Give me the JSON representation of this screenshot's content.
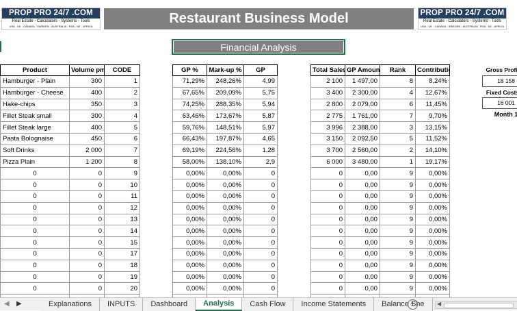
{
  "logo": {
    "name": "PROP PRO 24/7 .COM",
    "tagline": "Real Estate - Calculators - Systems - Tools",
    "countries": "USA - UK - CANADA - SWEDEN - AUSTRALIA - RSA - NZ - AFRICA"
  },
  "title": "Restaurant Business Model",
  "section_button": "Financial Analysis",
  "table1": {
    "headers": [
      "Product",
      "Volume pm",
      "CODE"
    ],
    "rows": [
      [
        "Hamburger - Plain",
        "300",
        "1"
      ],
      [
        "Hamburger - Cheese",
        "400",
        "2"
      ],
      [
        "Hake-chips",
        "350",
        "3"
      ],
      [
        "Fillet Steak small",
        "300",
        "4"
      ],
      [
        "Fillet Steak large",
        "400",
        "5"
      ],
      [
        "Pasta Bolognaise",
        "450",
        "6"
      ],
      [
        "Soft Drinks",
        "2 000",
        "7"
      ],
      [
        "Pizza Plain",
        "1 200",
        "8"
      ],
      [
        "0",
        "0",
        "9"
      ],
      [
        "0",
        "0",
        "10"
      ],
      [
        "0",
        "0",
        "11"
      ],
      [
        "0",
        "0",
        "12"
      ],
      [
        "0",
        "0",
        "13"
      ],
      [
        "0",
        "0",
        "14"
      ],
      [
        "0",
        "0",
        "15"
      ],
      [
        "0",
        "0",
        "17"
      ],
      [
        "0",
        "0",
        "18"
      ],
      [
        "0",
        "0",
        "19"
      ],
      [
        "0",
        "0",
        "20"
      ],
      [
        "0",
        "0",
        "21"
      ]
    ]
  },
  "table2": {
    "headers": [
      "GP %",
      "Mark-up %",
      "GP"
    ],
    "rows": [
      [
        "71,29%",
        "248,26%",
        "4,99"
      ],
      [
        "67,65%",
        "209,09%",
        "5,75"
      ],
      [
        "74,25%",
        "288,35%",
        "5,94"
      ],
      [
        "63,46%",
        "173,67%",
        "5,87"
      ],
      [
        "59,76%",
        "148,51%",
        "5,97"
      ],
      [
        "66,43%",
        "197,87%",
        "4,65"
      ],
      [
        "69,19%",
        "224,56%",
        "1,28"
      ],
      [
        "58,00%",
        "138,10%",
        "2,9"
      ],
      [
        "0,00%",
        "0,00%",
        "0"
      ],
      [
        "0,00%",
        "0,00%",
        "0"
      ],
      [
        "0,00%",
        "0,00%",
        "0"
      ],
      [
        "0,00%",
        "0,00%",
        "0"
      ],
      [
        "0,00%",
        "0,00%",
        "0"
      ],
      [
        "0,00%",
        "0,00%",
        "0"
      ],
      [
        "0,00%",
        "0,00%",
        "0"
      ],
      [
        "0,00%",
        "0,00%",
        "0"
      ],
      [
        "0,00%",
        "0,00%",
        "0"
      ],
      [
        "0,00%",
        "0,00%",
        "0"
      ],
      [
        "0,00%",
        "0,00%",
        "0"
      ],
      [
        "0,00%",
        "0,00%",
        "0"
      ]
    ]
  },
  "table3": {
    "headers": [
      "Total Sales",
      "GP Amounts",
      "Rank",
      "Contribution %"
    ],
    "rows": [
      [
        "2 100",
        "1 497,00",
        "8",
        "8,24%"
      ],
      [
        "3 400",
        "2 300,00",
        "4",
        "12,67%"
      ],
      [
        "2 800",
        "2 079,00",
        "6",
        "11,45%"
      ],
      [
        "2 775",
        "1 761,00",
        "7",
        "9,70%"
      ],
      [
        "3 996",
        "2 388,00",
        "3",
        "13,15%"
      ],
      [
        "3 150",
        "2 092,50",
        "5",
        "11,52%"
      ],
      [
        "3 700",
        "2 560,00",
        "2",
        "14,10%"
      ],
      [
        "6 000",
        "3 480,00",
        "1",
        "19,17%"
      ],
      [
        "0",
        "0,00",
        "9",
        "0,00%"
      ],
      [
        "0",
        "0,00",
        "9",
        "0,00%"
      ],
      [
        "0",
        "0,00",
        "9",
        "0,00%"
      ],
      [
        "0",
        "0,00",
        "9",
        "0,00%"
      ],
      [
        "0",
        "0,00",
        "9",
        "0,00%"
      ],
      [
        "0",
        "0,00",
        "9",
        "0,00%"
      ],
      [
        "0",
        "0,00",
        "9",
        "0,00%"
      ],
      [
        "0",
        "0,00",
        "9",
        "0,00%"
      ],
      [
        "0",
        "0,00",
        "9",
        "0,00%"
      ],
      [
        "0",
        "0,00",
        "9",
        "0,00%"
      ],
      [
        "0",
        "0,00",
        "9",
        "0,00%"
      ],
      [
        "0",
        "0,00",
        "9",
        "0,00%"
      ]
    ]
  },
  "side": {
    "gross_profit_label": "Gross Profit",
    "gross_profit_value": "18 158",
    "fixed_costs_label": "Fixed Costs",
    "fixed_costs_value": "16 001",
    "month_label": "Month 1"
  },
  "sheet_tabs": [
    "Explanations",
    "INPUTS",
    "Dashboard",
    "Analysis",
    "Cash Flow",
    "Income Statements",
    "Balance She"
  ],
  "active_tab": "Analysis",
  "colors": {
    "accent": "#1e7145",
    "header_gray": "#808080",
    "logo_band": "#243f60"
  }
}
